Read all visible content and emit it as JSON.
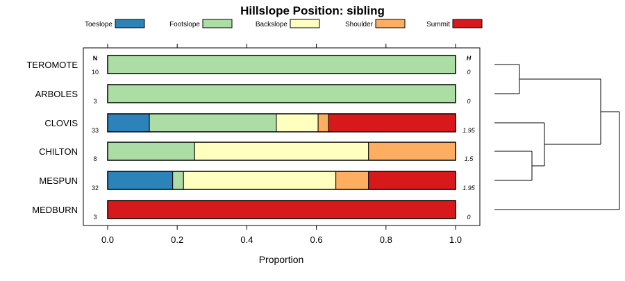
{
  "chart_data": {
    "type": "bar",
    "stacked": true,
    "orientation": "horizontal",
    "title": "Hillslope Position: sibling",
    "xlabel": "Proportion",
    "xlim": [
      0,
      1
    ],
    "x_ticks": [
      "0.0",
      "0.2",
      "0.4",
      "0.6",
      "0.8",
      "1.0"
    ],
    "legend_position": "top",
    "n_header": "N",
    "h_header": "H",
    "series": [
      {
        "name": "Toeslope",
        "color": "#2b83ba"
      },
      {
        "name": "Footslope",
        "color": "#abdda4"
      },
      {
        "name": "Backslope",
        "color": "#ffffbf"
      },
      {
        "name": "Shoulder",
        "color": "#fdae61"
      },
      {
        "name": "Summit",
        "color": "#d7191c"
      }
    ],
    "rows": [
      {
        "label": "TEROMOTE",
        "n": "10",
        "h": "0",
        "values": [
          0,
          1,
          0,
          0,
          0
        ]
      },
      {
        "label": "ARBOLES",
        "n": "3",
        "h": "0",
        "values": [
          0,
          1,
          0,
          0,
          0
        ]
      },
      {
        "label": "CLOVIS",
        "n": "33",
        "h": "1.95",
        "values": [
          0.12,
          0.365,
          0.12,
          0.03,
          0.365
        ]
      },
      {
        "label": "CHILTON",
        "n": "8",
        "h": "1.5",
        "values": [
          0,
          0.25,
          0.5,
          0.25,
          0
        ]
      },
      {
        "label": "MESPUN",
        "n": "32",
        "h": "1.95",
        "values": [
          0.187,
          0.031,
          0.438,
          0.094,
          0.25
        ]
      },
      {
        "label": "MEDBURN",
        "n": "3",
        "h": "0",
        "values": [
          0,
          0,
          0,
          0,
          1
        ]
      }
    ],
    "dendrogram": {
      "type": "hierarchical-clustering",
      "merges": [
        [
          "TEROMOTE",
          "ARBOLES"
        ],
        [
          "CHILTON",
          "MESPUN"
        ],
        [
          "CLOVIS",
          "CHILTON+MESPUN"
        ],
        [
          "TEROMOTE+ARBOLES",
          "CLOVIS+CHILTON+MESPUN"
        ],
        [
          "all",
          "MEDBURN"
        ]
      ],
      "heights": [
        0.2,
        0.3,
        0.4,
        0.85,
        1.0
      ]
    }
  }
}
